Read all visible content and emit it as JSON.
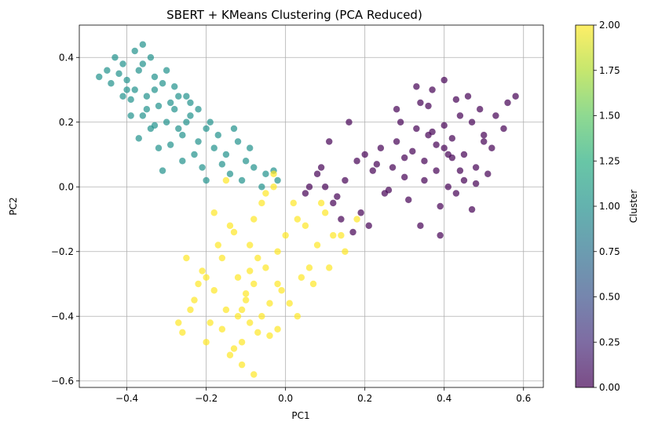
{
  "chart_data": {
    "type": "scatter",
    "title": "SBERT + KMeans Clustering (PCA Reduced)",
    "xlabel": "PC1",
    "ylabel": "PC2",
    "xlim": [
      -0.52,
      0.65
    ],
    "ylim": [
      -0.62,
      0.5
    ],
    "xticks": [
      -0.4,
      -0.2,
      0.0,
      0.2,
      0.4,
      0.6
    ],
    "xtick_labels": [
      "−0.4",
      "−0.2",
      "0.0",
      "0.2",
      "0.4",
      "0.6"
    ],
    "yticks": [
      -0.6,
      -0.4,
      -0.2,
      0.0,
      0.2,
      0.4
    ],
    "ytick_labels": [
      "−0.6",
      "−0.4",
      "−0.2",
      "0.0",
      "0.2",
      "0.4"
    ],
    "grid": true,
    "point_alpha": 0.7,
    "colorbar": {
      "label": "Cluster",
      "min": 0.0,
      "max": 2.0,
      "ticks": [
        0.0,
        0.25,
        0.5,
        0.75,
        1.0,
        1.25,
        1.5,
        1.75,
        2.0
      ],
      "tick_labels": [
        "0.00",
        "0.25",
        "0.50",
        "0.75",
        "1.00",
        "1.25",
        "1.50",
        "1.75",
        "2.00"
      ],
      "colormap": "viridis"
    },
    "series": [
      {
        "cluster": 0,
        "color": "#440154",
        "x": [
          0.4,
          0.35,
          0.42,
          0.45,
          0.38,
          0.3,
          0.28,
          0.33,
          0.47,
          0.5,
          0.44,
          0.36,
          0.41,
          0.25,
          0.22,
          0.18,
          0.15,
          0.12,
          0.1,
          0.08,
          0.2,
          0.27,
          0.31,
          0.39,
          0.43,
          0.48,
          0.52,
          0.55,
          0.49,
          0.46,
          0.37,
          0.34,
          0.29,
          0.24,
          0.19,
          0.14,
          0.42,
          0.38,
          0.35,
          0.32,
          0.26,
          0.23,
          0.53,
          0.56,
          0.58,
          0.51,
          0.45,
          0.4,
          0.36,
          0.3,
          0.21,
          0.17,
          0.13,
          0.09,
          0.06,
          0.05,
          0.11,
          0.16,
          0.28,
          0.33,
          0.4,
          0.44,
          0.47,
          0.39,
          0.34,
          0.37,
          0.41,
          0.43,
          0.48,
          0.5
        ],
        "y": [
          0.12,
          0.08,
          0.15,
          0.1,
          0.05,
          0.03,
          0.14,
          0.18,
          0.2,
          0.16,
          0.22,
          0.25,
          0.0,
          -0.02,
          0.05,
          0.08,
          0.02,
          -0.05,
          0.0,
          0.04,
          0.1,
          0.06,
          -0.04,
          -0.06,
          -0.02,
          0.06,
          0.12,
          0.18,
          0.24,
          0.28,
          0.3,
          0.26,
          0.2,
          0.12,
          -0.08,
          -0.1,
          0.09,
          0.13,
          0.02,
          0.11,
          -0.01,
          0.07,
          0.22,
          0.26,
          0.28,
          0.04,
          0.02,
          0.19,
          0.16,
          0.09,
          -0.12,
          -0.14,
          -0.03,
          0.06,
          0.0,
          -0.02,
          0.14,
          0.2,
          0.24,
          0.31,
          0.33,
          0.05,
          -0.07,
          -0.15,
          -0.12,
          0.17,
          0.1,
          0.27,
          0.01,
          0.14
        ]
      },
      {
        "cluster": 1,
        "color": "#21918c",
        "x": [
          -0.38,
          -0.35,
          -0.32,
          -0.4,
          -0.42,
          -0.36,
          -0.3,
          -0.28,
          -0.33,
          -0.37,
          -0.44,
          -0.41,
          -0.39,
          -0.34,
          -0.26,
          -0.24,
          -0.22,
          -0.2,
          -0.18,
          -0.15,
          -0.12,
          -0.1,
          -0.08,
          -0.05,
          -0.02,
          -0.29,
          -0.31,
          -0.27,
          -0.25,
          -0.23,
          -0.21,
          -0.19,
          -0.17,
          -0.14,
          -0.11,
          -0.43,
          -0.45,
          -0.47,
          -0.38,
          -0.36,
          -0.34,
          -0.32,
          -0.3,
          -0.35,
          -0.33,
          -0.28,
          -0.26,
          -0.24,
          -0.39,
          -0.41,
          -0.37,
          -0.29,
          -0.22,
          -0.16,
          -0.13,
          -0.09,
          -0.06,
          -0.03,
          -0.2,
          -0.25,
          -0.31,
          -0.4,
          -0.36,
          -0.33,
          -0.27
        ],
        "y": [
          0.3,
          0.28,
          0.25,
          0.33,
          0.35,
          0.22,
          0.2,
          0.24,
          0.3,
          0.36,
          0.32,
          0.38,
          0.27,
          0.18,
          0.16,
          0.22,
          0.14,
          0.18,
          0.12,
          0.1,
          0.14,
          0.08,
          0.06,
          0.04,
          0.02,
          0.26,
          0.32,
          0.18,
          0.28,
          0.1,
          0.06,
          0.2,
          0.16,
          0.04,
          0.02,
          0.4,
          0.36,
          0.34,
          0.42,
          0.38,
          0.4,
          0.12,
          0.36,
          0.24,
          0.19,
          0.31,
          0.08,
          0.26,
          0.22,
          0.28,
          0.15,
          0.13,
          0.24,
          0.07,
          0.18,
          0.12,
          0.0,
          0.05,
          0.02,
          0.2,
          0.05,
          0.3,
          0.44,
          0.34,
          0.28
        ]
      },
      {
        "cluster": 2,
        "color": "#fde725",
        "x": [
          -0.1,
          -0.08,
          -0.12,
          -0.05,
          -0.15,
          -0.18,
          -0.2,
          -0.02,
          0.0,
          0.03,
          -0.07,
          -0.13,
          -0.09,
          -0.11,
          -0.04,
          -0.16,
          -0.22,
          -0.24,
          -0.26,
          -0.06,
          -0.14,
          -0.03,
          0.02,
          0.05,
          0.08,
          0.1,
          0.06,
          0.12,
          0.15,
          0.18,
          -0.01,
          -0.17,
          -0.19,
          -0.21,
          -0.23,
          -0.25,
          -0.12,
          -0.09,
          -0.06,
          -0.11,
          -0.14,
          -0.08,
          -0.04,
          -0.02,
          0.01,
          0.04,
          -0.16,
          -0.1,
          -0.07,
          -0.13,
          -0.18,
          -0.05,
          -0.15,
          -0.2,
          -0.11,
          -0.08,
          -0.02,
          0.07,
          0.09,
          0.14,
          0.11,
          0.03,
          -0.27,
          -0.03,
          -0.09
        ],
        "y": [
          -0.35,
          -0.3,
          -0.4,
          -0.25,
          -0.38,
          -0.32,
          -0.28,
          -0.2,
          -0.15,
          -0.1,
          -0.45,
          -0.5,
          -0.42,
          -0.55,
          -0.36,
          -0.22,
          -0.3,
          -0.38,
          -0.45,
          -0.05,
          -0.12,
          0.0,
          -0.05,
          -0.12,
          -0.18,
          -0.08,
          -0.25,
          -0.15,
          -0.2,
          -0.1,
          -0.32,
          -0.18,
          -0.42,
          -0.26,
          -0.35,
          -0.22,
          -0.28,
          -0.18,
          -0.4,
          -0.48,
          -0.52,
          -0.58,
          -0.46,
          -0.3,
          -0.36,
          -0.28,
          -0.44,
          -0.33,
          -0.22,
          -0.14,
          -0.08,
          -0.02,
          0.02,
          -0.48,
          -0.38,
          -0.1,
          -0.44,
          -0.3,
          -0.05,
          -0.15,
          -0.25,
          -0.4,
          -0.42,
          0.04,
          -0.26
        ]
      }
    ]
  }
}
